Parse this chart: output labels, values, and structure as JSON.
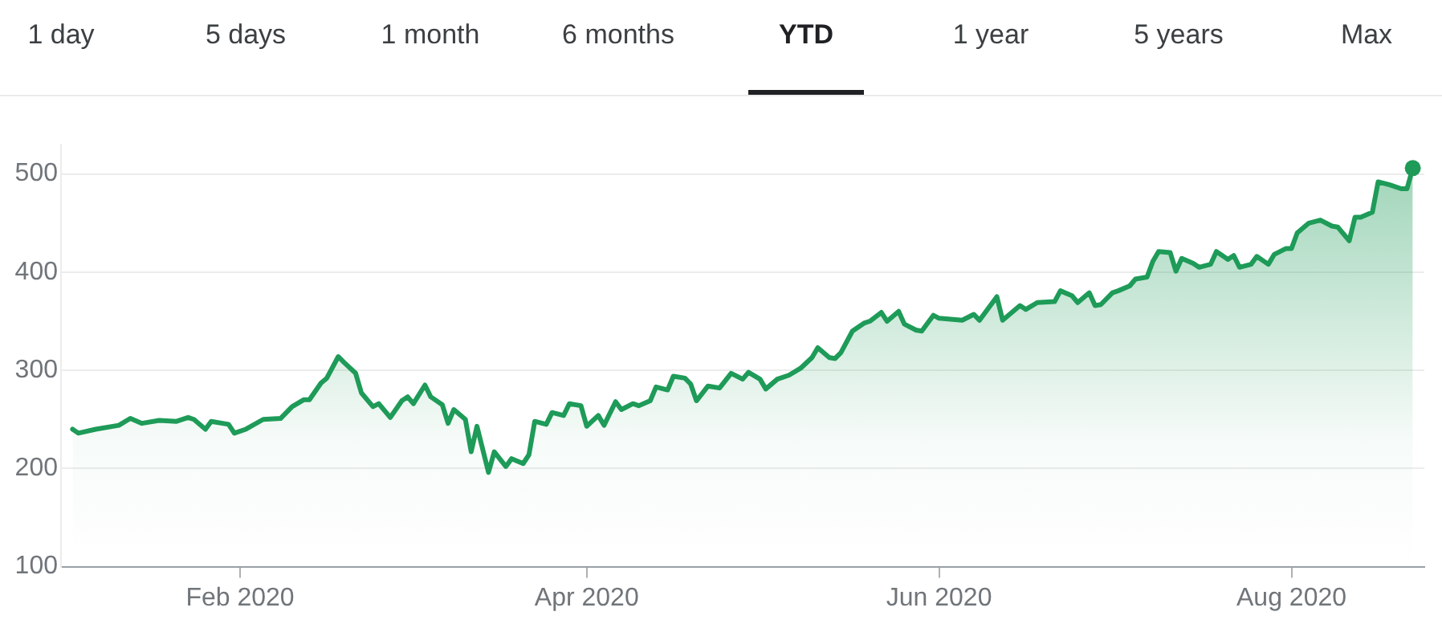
{
  "chart_data": {
    "type": "area",
    "annotations": [
      "1 day",
      "5 days",
      "1 month",
      "6 months",
      "YTD",
      "1 year",
      "5 years",
      "Max"
    ],
    "x": [
      "2020-01-03",
      "2020-01-04",
      "2020-01-07",
      "2020-01-11",
      "2020-01-13",
      "2020-01-15",
      "2020-01-18",
      "2020-01-21",
      "2020-01-23",
      "2020-01-24",
      "2020-01-26",
      "2020-01-27",
      "2020-01-30",
      "2020-01-31",
      "2020-02-02",
      "2020-02-05",
      "2020-02-08",
      "2020-02-10",
      "2020-02-12",
      "2020-02-13",
      "2020-02-15",
      "2020-02-16",
      "2020-02-18",
      "2020-02-19",
      "2020-02-21",
      "2020-02-22",
      "2020-02-24",
      "2020-02-25",
      "2020-02-27",
      "2020-02-29",
      "2020-03-01",
      "2020-03-02",
      "2020-03-04",
      "2020-03-05",
      "2020-03-07",
      "2020-03-08",
      "2020-03-09",
      "2020-03-11",
      "2020-03-12",
      "2020-03-13",
      "2020-03-15",
      "2020-03-16",
      "2020-03-18",
      "2020-03-19",
      "2020-03-21",
      "2020-03-22",
      "2020-03-23",
      "2020-03-25",
      "2020-03-26",
      "2020-03-28",
      "2020-03-29",
      "2020-03-31",
      "2020-04-01",
      "2020-04-03",
      "2020-04-04",
      "2020-04-06",
      "2020-04-07",
      "2020-04-09",
      "2020-04-10",
      "2020-04-12",
      "2020-04-13",
      "2020-04-15",
      "2020-04-16",
      "2020-04-18",
      "2020-04-19",
      "2020-04-20",
      "2020-04-22",
      "2020-04-24",
      "2020-04-26",
      "2020-04-28",
      "2020-04-29",
      "2020-05-01",
      "2020-05-02",
      "2020-05-04",
      "2020-05-06",
      "2020-05-08",
      "2020-05-10",
      "2020-05-11",
      "2020-05-13",
      "2020-05-14",
      "2020-05-15",
      "2020-05-17",
      "2020-05-19",
      "2020-05-20",
      "2020-05-22",
      "2020-05-23",
      "2020-05-25",
      "2020-05-26",
      "2020-05-28",
      "2020-05-29",
      "2020-05-31",
      "2020-06-01",
      "2020-06-05",
      "2020-06-07",
      "2020-06-08",
      "2020-06-11",
      "2020-06-12",
      "2020-06-15",
      "2020-06-16",
      "2020-06-18",
      "2020-06-21",
      "2020-06-22",
      "2020-06-24",
      "2020-06-25",
      "2020-06-27",
      "2020-06-28",
      "2020-06-29",
      "2020-07-01",
      "2020-07-02",
      "2020-07-04",
      "2020-07-05",
      "2020-07-07",
      "2020-07-08",
      "2020-07-09",
      "2020-07-11",
      "2020-07-12",
      "2020-07-13",
      "2020-07-15",
      "2020-07-16",
      "2020-07-18",
      "2020-07-19",
      "2020-07-21",
      "2020-07-22",
      "2020-07-23",
      "2020-07-25",
      "2020-07-26",
      "2020-07-28",
      "2020-07-29",
      "2020-07-31",
      "2020-08-01",
      "2020-08-02",
      "2020-08-04",
      "2020-08-06",
      "2020-08-08",
      "2020-08-09",
      "2020-08-11",
      "2020-08-12",
      "2020-08-13",
      "2020-08-15",
      "2020-08-16",
      "2020-08-18",
      "2020-08-20",
      "2020-08-21",
      "2020-08-22"
    ],
    "series": [
      {
        "color": "#1e9b58",
        "values": [
          240,
          236,
          240,
          244,
          251,
          246,
          249,
          248,
          252,
          250,
          240,
          248,
          245,
          236,
          240,
          250,
          251,
          263,
          270,
          270,
          287,
          292,
          314,
          308,
          297,
          277,
          263,
          266,
          252,
          269,
          273,
          266,
          285,
          273,
          265,
          246,
          260,
          250,
          217,
          243,
          196,
          217,
          202,
          210,
          205,
          214,
          248,
          245,
          257,
          254,
          266,
          264,
          243,
          254,
          244,
          268,
          260,
          266,
          264,
          269,
          283,
          280,
          294,
          292,
          286,
          269,
          284,
          282,
          297,
          291,
          298,
          291,
          281,
          291,
          295,
          302,
          313,
          323,
          313,
          312,
          318,
          340,
          348,
          350,
          359,
          350,
          360,
          347,
          341,
          340,
          356,
          353,
          351,
          357,
          351,
          375,
          351,
          366,
          362,
          369,
          370,
          381,
          376,
          369,
          379,
          366,
          367,
          379,
          381,
          386,
          393,
          395,
          411,
          421,
          420,
          401,
          414,
          409,
          405,
          408,
          421,
          413,
          417,
          405,
          408,
          416,
          408,
          418,
          424,
          424,
          440,
          450,
          453,
          447,
          446,
          432,
          456,
          456,
          461,
          492,
          489,
          485,
          485,
          506
        ]
      }
    ],
    "xlim": [
      "2020-01-01",
      "2020-08-24"
    ],
    "xticks": [
      {
        "value": "2020-02-01",
        "label": "Feb 2020"
      },
      {
        "value": "2020-04-01",
        "label": "Apr 2020"
      },
      {
        "value": "2020-06-01",
        "label": "Jun 2020"
      },
      {
        "value": "2020-08-01",
        "label": "Aug 2020"
      }
    ],
    "ylim": [
      100,
      530
    ],
    "yticks": [
      100,
      200,
      300,
      400,
      500
    ],
    "grid": "y"
  }
}
